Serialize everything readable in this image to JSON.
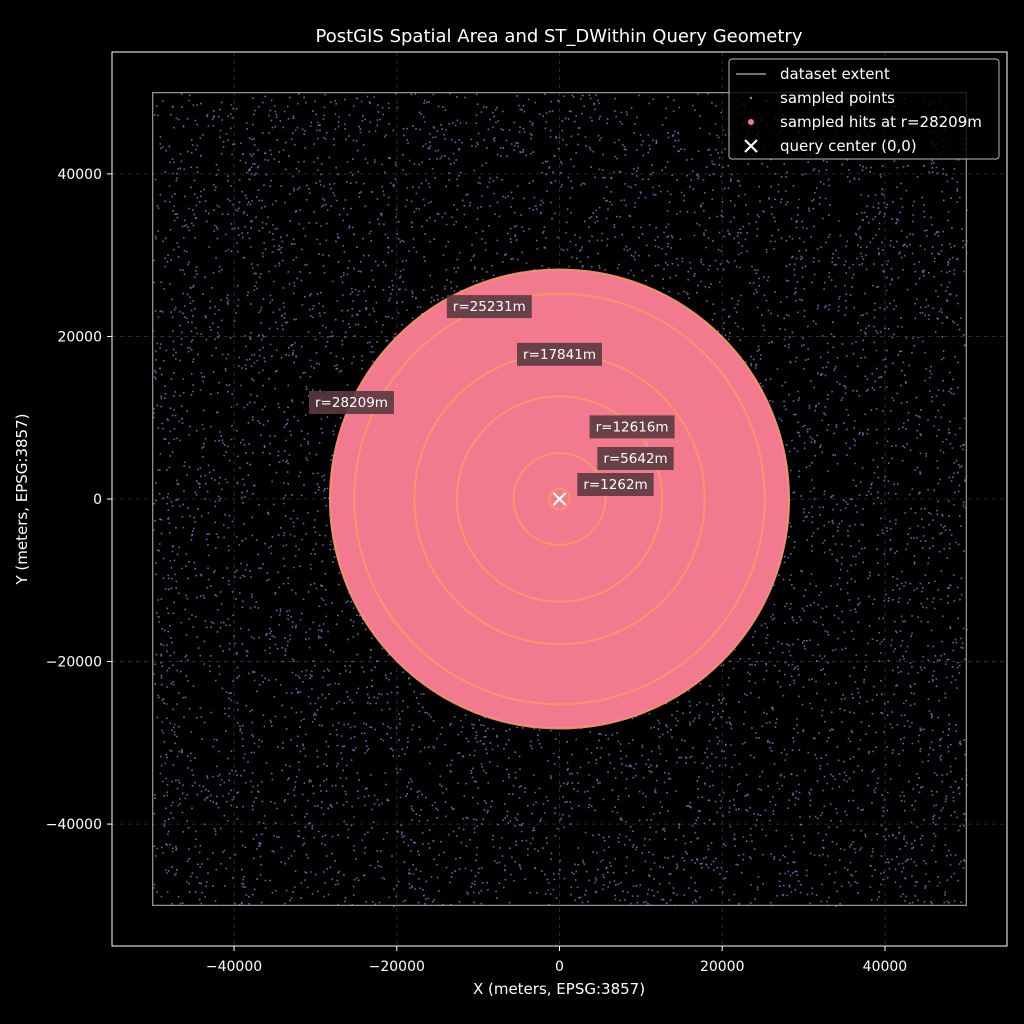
{
  "chart_data": {
    "type": "scatter",
    "title": "PostGIS Spatial Area and ST_DWithin Query Geometry",
    "xlabel": "X (meters, EPSG:3857)",
    "ylabel": "Y (meters, EPSG:3857)",
    "xlim": [
      -55000,
      55000
    ],
    "ylim": [
      -55000,
      55000
    ],
    "xticks": [
      -40000,
      -20000,
      0,
      20000,
      40000
    ],
    "yticks": [
      -40000,
      -20000,
      0,
      20000,
      40000
    ],
    "xtick_labels": [
      "−40000",
      "−20000",
      "0",
      "20000",
      "40000"
    ],
    "ytick_labels": [
      "−40000",
      "−20000",
      "0",
      "20000",
      "40000"
    ],
    "grid": true,
    "legend_position": "top-right",
    "dataset_extent": {
      "xmin": -50000,
      "xmax": 50000,
      "ymin": -50000,
      "ymax": 50000
    },
    "query_center": [
      0,
      0
    ],
    "radii": [
      1262,
      5642,
      12616,
      17841,
      25231,
      28209
    ],
    "radius_labels": [
      "r=1262m",
      "r=5642m",
      "r=12616m",
      "r=17841m",
      "r=25231m",
      "r=28209m"
    ],
    "hits_radius": 28209,
    "legend": [
      {
        "label": "dataset extent",
        "marker": "line"
      },
      {
        "label": "sampled points",
        "marker": "point"
      },
      {
        "label": "sampled hits at r=28209m",
        "marker": "hit"
      },
      {
        "label": "query center (0,0)",
        "marker": "x"
      }
    ],
    "colors": {
      "background": "#000000",
      "points": "#6f93e0",
      "hits_fill": "#f37a8e",
      "rings": "#f59a66",
      "extent": "#9a9a9a",
      "center": "#ffffff",
      "label_box": "#5a3a40"
    }
  }
}
